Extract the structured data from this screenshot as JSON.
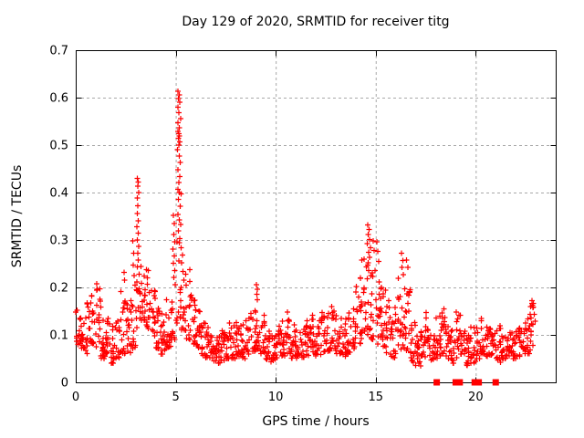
{
  "page": {
    "background": "#ffffff"
  },
  "chart_data": {
    "type": "scatter",
    "title": "Day 129 of 2020, SRMTID for receiver titg",
    "xlabel": "GPS time / hours",
    "ylabel": "SRMTID / TECUs",
    "xlim": [
      0,
      24
    ],
    "ylim": [
      0,
      0.7
    ],
    "xticks": [
      0,
      5,
      10,
      15,
      20
    ],
    "xtick_labels": [
      "0",
      "5",
      "10",
      "15",
      "20"
    ],
    "yticks": [
      0,
      0.1,
      0.2,
      0.3,
      0.4,
      0.5,
      0.6,
      0.7
    ],
    "ytick_labels": [
      "0",
      "0.1",
      "0.2",
      "0.3",
      "0.4",
      "0.5",
      "0.6",
      "0.7"
    ],
    "grid": true,
    "grid_color": "#a8a8a8",
    "axis_color": "#000000",
    "legend": "none",
    "series": [
      {
        "name": "SRMTID",
        "marker": "plus",
        "color": "#ff0000",
        "density_bins_format": [
          "x_start",
          "x_end",
          "y_min",
          "y_max",
          "n_points"
        ],
        "density_bins": [
          [
            0.0,
            0.25,
            0.08,
            0.165,
            15
          ],
          [
            0.25,
            0.5,
            0.07,
            0.15,
            15
          ],
          [
            0.5,
            0.75,
            0.06,
            0.17,
            15
          ],
          [
            0.75,
            1.0,
            0.08,
            0.19,
            15
          ],
          [
            1.0,
            1.25,
            0.07,
            0.2,
            15
          ],
          [
            1.25,
            1.5,
            0.05,
            0.145,
            15
          ],
          [
            1.5,
            1.75,
            0.055,
            0.14,
            15
          ],
          [
            1.75,
            2.0,
            0.04,
            0.12,
            15
          ],
          [
            2.0,
            2.25,
            0.05,
            0.135,
            15
          ],
          [
            2.25,
            2.5,
            0.06,
            0.2,
            15
          ],
          [
            2.5,
            2.75,
            0.055,
            0.17,
            15
          ],
          [
            2.75,
            3.0,
            0.07,
            0.19,
            14
          ],
          [
            3.0,
            3.25,
            0.1,
            0.2,
            14
          ],
          [
            3.25,
            3.5,
            0.13,
            0.26,
            15
          ],
          [
            3.5,
            3.75,
            0.11,
            0.25,
            15
          ],
          [
            3.75,
            4.0,
            0.09,
            0.21,
            15
          ],
          [
            4.0,
            4.25,
            0.07,
            0.16,
            15
          ],
          [
            4.25,
            4.5,
            0.06,
            0.145,
            15
          ],
          [
            4.5,
            4.75,
            0.07,
            0.175,
            15
          ],
          [
            4.75,
            5.0,
            0.09,
            0.18,
            13
          ],
          [
            5.0,
            5.25,
            0.12,
            0.3,
            12
          ],
          [
            5.25,
            5.5,
            0.11,
            0.25,
            12
          ],
          [
            5.5,
            5.75,
            0.09,
            0.28,
            14
          ],
          [
            5.75,
            6.0,
            0.08,
            0.185,
            15
          ],
          [
            6.0,
            6.25,
            0.065,
            0.155,
            15
          ],
          [
            6.25,
            6.5,
            0.055,
            0.13,
            15
          ],
          [
            6.5,
            6.75,
            0.05,
            0.115,
            15
          ],
          [
            6.75,
            7.0,
            0.045,
            0.11,
            15
          ],
          [
            7.0,
            7.25,
            0.04,
            0.105,
            15
          ],
          [
            7.25,
            7.5,
            0.045,
            0.115,
            15
          ],
          [
            7.5,
            7.75,
            0.05,
            0.125,
            15
          ],
          [
            7.75,
            8.0,
            0.05,
            0.12,
            15
          ],
          [
            8.0,
            8.25,
            0.055,
            0.13,
            15
          ],
          [
            8.25,
            8.5,
            0.05,
            0.125,
            15
          ],
          [
            8.5,
            8.75,
            0.06,
            0.14,
            15
          ],
          [
            8.75,
            9.0,
            0.065,
            0.155,
            15
          ],
          [
            9.0,
            9.25,
            0.07,
            0.15,
            15
          ],
          [
            9.25,
            9.5,
            0.06,
            0.15,
            15
          ],
          [
            9.5,
            9.75,
            0.045,
            0.115,
            15
          ],
          [
            9.75,
            10.0,
            0.04,
            0.11,
            15
          ],
          [
            10.0,
            10.25,
            0.05,
            0.12,
            15
          ],
          [
            10.25,
            10.5,
            0.055,
            0.13,
            15
          ],
          [
            10.5,
            10.75,
            0.06,
            0.15,
            15
          ],
          [
            10.75,
            11.0,
            0.05,
            0.125,
            15
          ],
          [
            11.0,
            11.25,
            0.045,
            0.115,
            15
          ],
          [
            11.25,
            11.5,
            0.05,
            0.12,
            15
          ],
          [
            11.5,
            11.75,
            0.055,
            0.135,
            15
          ],
          [
            11.75,
            12.0,
            0.06,
            0.145,
            15
          ],
          [
            12.0,
            12.25,
            0.055,
            0.14,
            15
          ],
          [
            12.25,
            12.5,
            0.06,
            0.15,
            15
          ],
          [
            12.5,
            12.75,
            0.065,
            0.155,
            15
          ],
          [
            12.75,
            13.0,
            0.07,
            0.16,
            15
          ],
          [
            13.0,
            13.25,
            0.06,
            0.14,
            15
          ],
          [
            13.25,
            13.5,
            0.055,
            0.135,
            15
          ],
          [
            13.5,
            13.75,
            0.06,
            0.15,
            15
          ],
          [
            13.75,
            14.0,
            0.07,
            0.175,
            15
          ],
          [
            14.0,
            14.25,
            0.08,
            0.24,
            14
          ],
          [
            14.25,
            14.5,
            0.09,
            0.28,
            14
          ],
          [
            14.5,
            14.75,
            0.1,
            0.25,
            13
          ],
          [
            14.75,
            15.0,
            0.09,
            0.24,
            14
          ],
          [
            15.0,
            15.25,
            0.08,
            0.23,
            14
          ],
          [
            15.25,
            15.5,
            0.07,
            0.22,
            15
          ],
          [
            15.5,
            15.75,
            0.06,
            0.18,
            15
          ],
          [
            15.75,
            16.0,
            0.05,
            0.16,
            15
          ],
          [
            16.0,
            16.25,
            0.06,
            0.22,
            15
          ],
          [
            16.25,
            16.5,
            0.065,
            0.21,
            14
          ],
          [
            16.5,
            16.75,
            0.06,
            0.2,
            14
          ],
          [
            16.75,
            17.0,
            0.04,
            0.13,
            15
          ],
          [
            17.0,
            17.25,
            0.035,
            0.1,
            15
          ],
          [
            17.25,
            17.5,
            0.05,
            0.14,
            15
          ],
          [
            17.5,
            17.75,
            0.055,
            0.15,
            15
          ],
          [
            17.75,
            18.0,
            0.04,
            0.11,
            15
          ],
          [
            18.0,
            18.25,
            0.05,
            0.14,
            14
          ],
          [
            18.25,
            18.5,
            0.06,
            0.155,
            15
          ],
          [
            18.5,
            18.75,
            0.05,
            0.13,
            15
          ],
          [
            18.75,
            19.0,
            0.04,
            0.115,
            14
          ],
          [
            19.0,
            19.25,
            0.05,
            0.15,
            13
          ],
          [
            19.25,
            19.5,
            0.055,
            0.14,
            15
          ],
          [
            19.5,
            19.75,
            0.035,
            0.1,
            15
          ],
          [
            19.75,
            20.0,
            0.04,
            0.12,
            14
          ],
          [
            20.0,
            20.25,
            0.05,
            0.135,
            13
          ],
          [
            20.25,
            20.5,
            0.06,
            0.155,
            15
          ],
          [
            20.5,
            20.75,
            0.055,
            0.14,
            15
          ],
          [
            20.75,
            21.0,
            0.045,
            0.115,
            14
          ],
          [
            21.0,
            21.25,
            0.04,
            0.12,
            14
          ],
          [
            21.25,
            21.5,
            0.05,
            0.125,
            15
          ],
          [
            21.5,
            21.75,
            0.045,
            0.11,
            15
          ],
          [
            21.75,
            22.0,
            0.05,
            0.12,
            15
          ],
          [
            22.0,
            22.25,
            0.055,
            0.13,
            15
          ],
          [
            22.25,
            22.5,
            0.06,
            0.14,
            15
          ],
          [
            22.5,
            22.75,
            0.06,
            0.15,
            15
          ],
          [
            22.75,
            23.0,
            0.065,
            0.175,
            14
          ]
        ],
        "feature_points": [
          [
            1.04,
            0.208
          ],
          [
            1.08,
            0.196
          ],
          [
            2.42,
            0.232
          ],
          [
            2.45,
            0.215
          ],
          [
            2.86,
            0.298
          ],
          [
            2.9,
            0.272
          ],
          [
            2.88,
            0.247
          ],
          [
            2.93,
            0.225
          ],
          [
            2.96,
            0.205
          ],
          [
            3.08,
            0.43
          ],
          [
            3.12,
            0.422
          ],
          [
            3.1,
            0.413
          ],
          [
            3.14,
            0.4
          ],
          [
            3.07,
            0.388
          ],
          [
            3.11,
            0.372
          ],
          [
            3.09,
            0.356
          ],
          [
            3.13,
            0.34
          ],
          [
            3.06,
            0.328
          ],
          [
            3.12,
            0.314
          ],
          [
            3.08,
            0.3
          ],
          [
            3.15,
            0.287
          ],
          [
            3.1,
            0.272
          ],
          [
            3.13,
            0.258
          ],
          [
            3.07,
            0.243
          ],
          [
            3.16,
            0.228
          ],
          [
            3.05,
            0.212
          ],
          [
            4.88,
            0.352
          ],
          [
            4.92,
            0.335
          ],
          [
            4.9,
            0.312
          ],
          [
            4.95,
            0.296
          ],
          [
            4.86,
            0.281
          ],
          [
            4.93,
            0.266
          ],
          [
            4.89,
            0.251
          ],
          [
            4.96,
            0.236
          ],
          [
            4.91,
            0.221
          ],
          [
            4.97,
            0.206
          ],
          [
            5.12,
            0.613
          ],
          [
            5.17,
            0.606
          ],
          [
            5.14,
            0.598
          ],
          [
            5.21,
            0.59
          ],
          [
            5.1,
            0.58
          ],
          [
            5.16,
            0.568
          ],
          [
            5.24,
            0.556
          ],
          [
            5.12,
            0.547
          ],
          [
            5.19,
            0.537
          ],
          [
            5.11,
            0.529
          ],
          [
            5.15,
            0.524
          ],
          [
            5.18,
            0.519
          ],
          [
            5.13,
            0.514
          ],
          [
            5.21,
            0.507
          ],
          [
            5.16,
            0.5
          ],
          [
            5.09,
            0.49
          ],
          [
            5.18,
            0.477
          ],
          [
            5.23,
            0.463
          ],
          [
            5.12,
            0.448
          ],
          [
            5.2,
            0.434
          ],
          [
            5.15,
            0.421
          ],
          [
            5.1,
            0.407
          ],
          [
            5.19,
            0.4
          ],
          [
            5.26,
            0.397
          ],
          [
            5.14,
            0.386
          ],
          [
            5.22,
            0.371
          ],
          [
            5.11,
            0.354
          ],
          [
            5.18,
            0.342
          ],
          [
            5.25,
            0.333
          ],
          [
            5.13,
            0.319
          ],
          [
            5.2,
            0.303
          ],
          [
            5.28,
            0.284
          ],
          [
            5.33,
            0.268
          ],
          [
            5.3,
            0.252
          ],
          [
            5.36,
            0.234
          ],
          [
            5.4,
            0.215
          ],
          [
            9.03,
            0.206
          ],
          [
            9.07,
            0.196
          ],
          [
            9.05,
            0.186
          ],
          [
            9.09,
            0.174
          ],
          [
            10.58,
            0.148
          ],
          [
            14.6,
            0.332
          ],
          [
            14.66,
            0.322
          ],
          [
            14.63,
            0.312
          ],
          [
            14.7,
            0.301
          ],
          [
            14.58,
            0.292
          ],
          [
            14.73,
            0.284
          ],
          [
            14.65,
            0.274
          ],
          [
            14.69,
            0.263
          ],
          [
            14.62,
            0.252
          ],
          [
            14.88,
            0.298
          ],
          [
            14.92,
            0.278
          ],
          [
            15.05,
            0.296
          ],
          [
            15.1,
            0.276
          ],
          [
            15.15,
            0.255
          ],
          [
            16.3,
            0.272
          ],
          [
            16.35,
            0.257
          ],
          [
            16.32,
            0.242
          ],
          [
            16.38,
            0.227
          ],
          [
            16.55,
            0.258
          ],
          [
            16.6,
            0.242
          ],
          [
            22.82,
            0.172
          ],
          [
            22.86,
            0.158
          ]
        ]
      },
      {
        "name": "zero flags",
        "marker": "filled-square",
        "color": "#ff0000",
        "points": [
          [
            18.05,
            0
          ],
          [
            19.0,
            0
          ],
          [
            19.2,
            0
          ],
          [
            19.95,
            0
          ],
          [
            20.15,
            0
          ],
          [
            21.0,
            0
          ]
        ]
      }
    ]
  }
}
